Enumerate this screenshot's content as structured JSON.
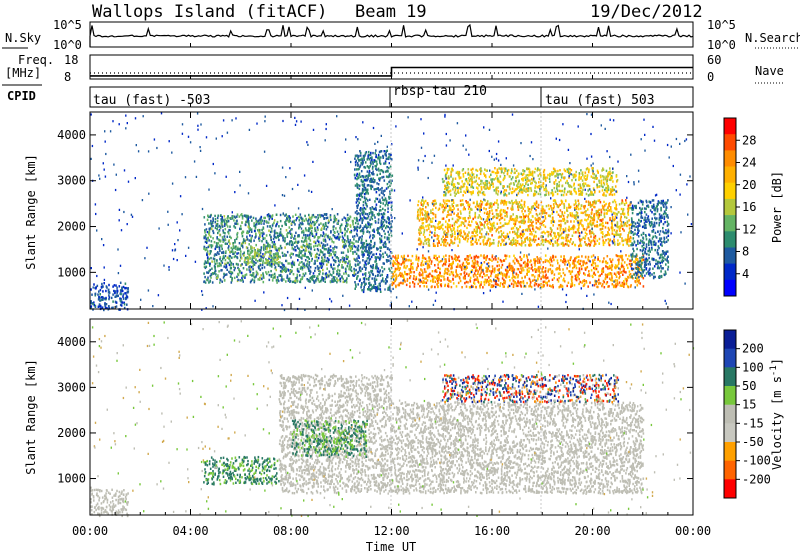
{
  "header": {
    "station": "Wallops Island (fitACF)",
    "beam": "Beam 19",
    "date": "19/Dec/2012"
  },
  "sky_panel": {
    "label": "N.Sky",
    "left_ticks": [
      "10^5",
      "10^0"
    ],
    "right_ticks": [
      "10^5",
      "10^0"
    ],
    "right_label": "N.Search"
  },
  "freq_panel": {
    "label_line1": "Freq.",
    "label_line2": "[MHz]",
    "left_ticks": [
      "18",
      "8"
    ],
    "right_ticks": [
      "60",
      "0"
    ],
    "right_label": "Nave",
    "freq_level_mhz": [
      [
        0,
        9.3
      ],
      [
        12.0,
        9.3
      ],
      [
        12.0,
        12.8
      ],
      [
        24,
        12.8
      ]
    ],
    "nave_level": [
      [
        0,
        15
      ],
      [
        24,
        15
      ]
    ]
  },
  "cpid": {
    "label": "CPID",
    "segments": [
      {
        "start_hour": 0,
        "text": "tau (fast) -503"
      },
      {
        "start_hour": 12,
        "text": "rbsp-tau 210"
      },
      {
        "start_hour": 18,
        "text": "tau (fast) 503"
      }
    ]
  },
  "power_colorbar": {
    "title": "Power [dB]",
    "ticks": [
      "28",
      "24",
      "20",
      "16",
      "12",
      "8",
      "4"
    ],
    "colors": [
      "#ff0000",
      "#ff4a00",
      "#ff8c00",
      "#ffb000",
      "#ffd000",
      "#b4c83c",
      "#64b464",
      "#2d8c6e",
      "#1e5aa0",
      "#0028c8",
      "#0000ff"
    ]
  },
  "velocity_colorbar": {
    "title": "Velocity [m s",
    "title_sup": "-1",
    "title_end": "]",
    "ticks": [
      "200",
      "100",
      "50",
      "15",
      "-15",
      "-50",
      "-100",
      "-200"
    ],
    "colors": [
      "#0a1e96",
      "#1e46b4",
      "#287864",
      "#78c83c",
      "#bebeb4",
      "#c8c8c0",
      "#ffa000",
      "#ff6400",
      "#ff0000"
    ]
  },
  "axes": {
    "ylabel": "Slant Range [km]",
    "yticks": [
      "4000",
      "3000",
      "2000",
      "1000"
    ],
    "xticks": [
      "00:00",
      "04:00",
      "08:00",
      "12:00",
      "16:00",
      "20:00",
      "00:00"
    ],
    "xlabel": "Time UT"
  },
  "chart_data": {
    "type": "heatmap",
    "title": "Wallops Island (fitACF)",
    "x_unit": "hours UT",
    "xlim": [
      0,
      24
    ],
    "ylim": [
      200,
      4500
    ],
    "ylabel": "Slant Range [km]",
    "xlabel": "Time UT",
    "power_scatter_regions": [
      {
        "from_hour": 0.0,
        "to_hour": 1.5,
        "range_km": [
          200,
          800
        ],
        "power_db": [
          4,
          10
        ]
      },
      {
        "from_hour": 4.5,
        "to_hour": 10.5,
        "range_km": [
          800,
          2300
        ],
        "power_db": [
          6,
          16
        ]
      },
      {
        "from_hour": 6.2,
        "to_hour": 7.5,
        "range_km": [
          1200,
          1600
        ],
        "power_db": [
          12,
          18
        ]
      },
      {
        "from_hour": 10.5,
        "to_hour": 12.0,
        "range_km": [
          600,
          3700
        ],
        "power_db": [
          6,
          12
        ]
      },
      {
        "from_hour": 12.0,
        "to_hour": 22.0,
        "range_km": [
          700,
          1400
        ],
        "power_db": [
          20,
          30
        ]
      },
      {
        "from_hour": 13.0,
        "to_hour": 21.5,
        "range_km": [
          1600,
          2600
        ],
        "power_db": [
          16,
          28
        ]
      },
      {
        "from_hour": 14.0,
        "to_hour": 21.0,
        "range_km": [
          2700,
          3300
        ],
        "power_db": [
          14,
          24
        ]
      },
      {
        "from_hour": 21.5,
        "to_hour": 23.0,
        "range_km": [
          900,
          2600
        ],
        "power_db": [
          6,
          12
        ]
      }
    ],
    "velocity_scatter_regions": [
      {
        "from_hour": 0.0,
        "to_hour": 1.5,
        "range_km": [
          200,
          800
        ],
        "velocity_ms": [
          -10,
          10
        ]
      },
      {
        "from_hour": 4.5,
        "to_hour": 7.5,
        "range_km": [
          900,
          1500
        ],
        "velocity_ms": [
          20,
          50
        ]
      },
      {
        "from_hour": 7.5,
        "to_hour": 12.0,
        "range_km": [
          700,
          3300
        ],
        "velocity_ms": [
          -15,
          15
        ]
      },
      {
        "from_hour": 8.0,
        "to_hour": 11.0,
        "range_km": [
          1500,
          2300
        ],
        "velocity_ms": [
          15,
          50
        ]
      },
      {
        "from_hour": 12.0,
        "to_hour": 22.0,
        "range_km": [
          700,
          2700
        ],
        "velocity_ms": [
          -15,
          15
        ]
      },
      {
        "from_hour": 14.0,
        "to_hour": 21.0,
        "range_km": [
          2700,
          3300
        ],
        "velocity_ms": [
          -200,
          200
        ]
      }
    ]
  }
}
